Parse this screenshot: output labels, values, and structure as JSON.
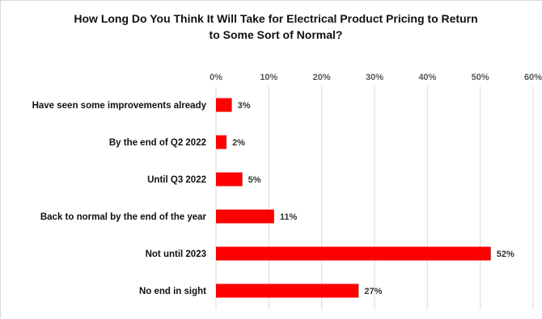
{
  "chart_data": {
    "type": "bar",
    "orientation": "horizontal",
    "title": "How Long Do  You Think It Will Take for Electrical Product Pricing to Return to Some Sort of Normal?",
    "title_lines": [
      "How Long Do  You Think It Will Take for Electrical Product Pricing to Return",
      "to Some Sort of Normal?"
    ],
    "categories": [
      "Have seen some improvements already",
      "By the end of Q2 2022",
      "Until Q3 2022",
      "Back to normal by the end of the year",
      "Not until 2023",
      "No end in sight"
    ],
    "values": [
      3,
      2,
      5,
      11,
      52,
      27
    ],
    "data_labels": [
      "3%",
      "2%",
      "5%",
      "11%",
      "52%",
      "27%"
    ],
    "xlim": [
      0,
      60
    ],
    "xticks": [
      0,
      10,
      20,
      30,
      40,
      50,
      60
    ],
    "xtick_labels": [
      "0%",
      "10%",
      "20%",
      "30%",
      "40%",
      "50%",
      "60%"
    ],
    "axis_position": "top",
    "grid": true,
    "legend": "none",
    "bar_color": "#ff0000",
    "xlabel": "",
    "ylabel": ""
  }
}
